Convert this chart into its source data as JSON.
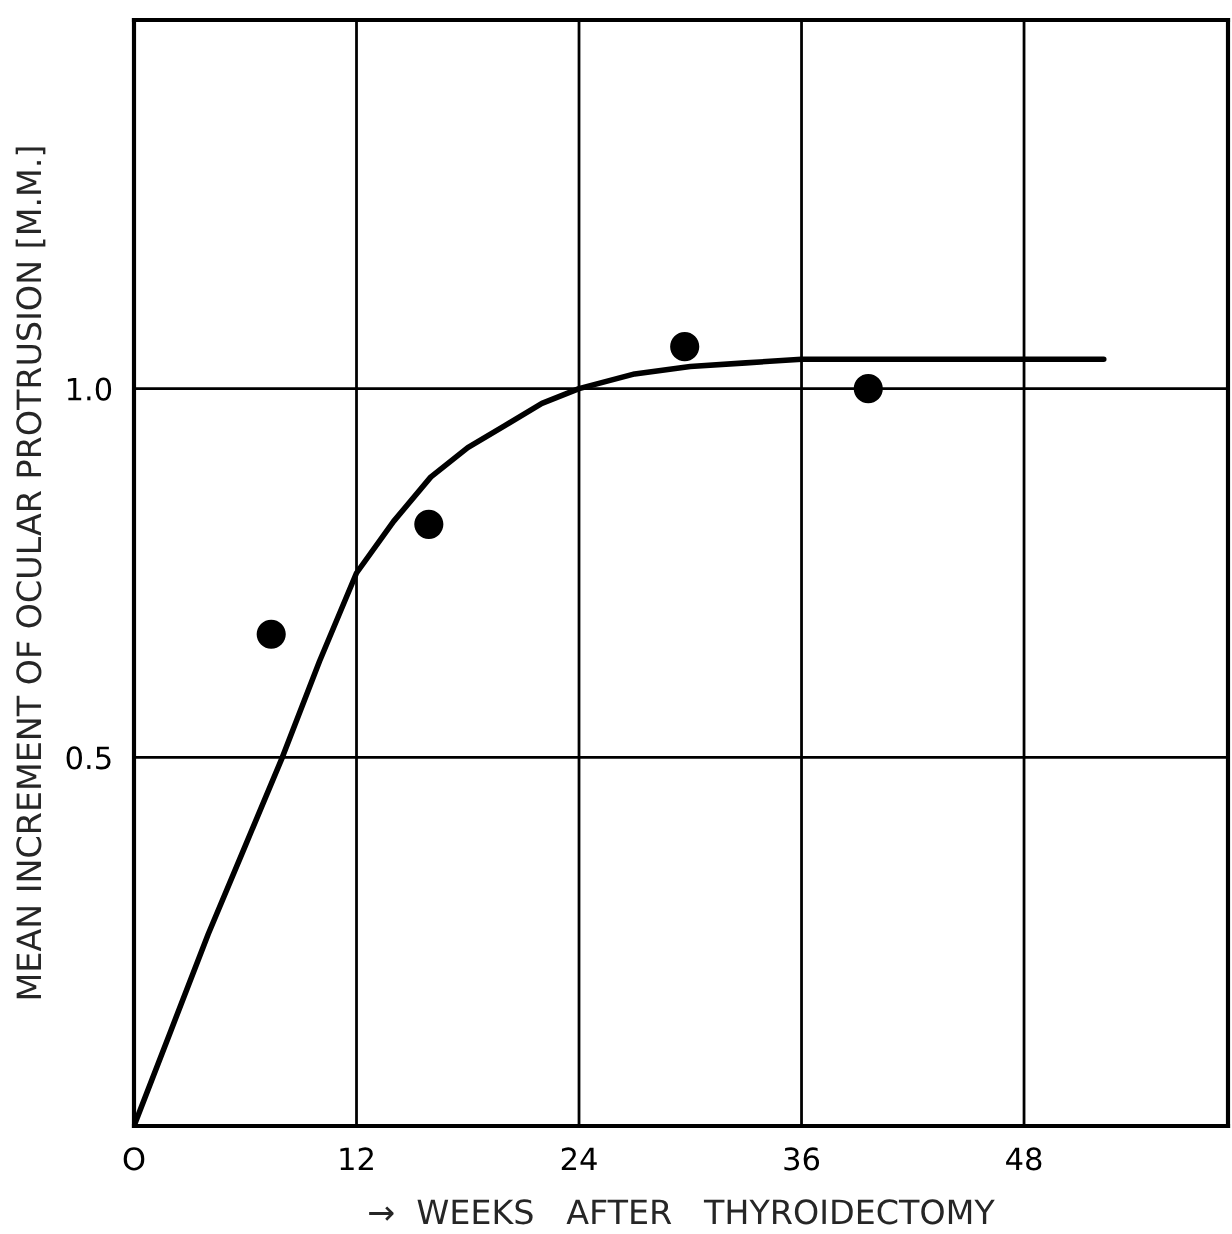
{
  "chart_data": {
    "type": "scatter",
    "xlabel": "→  WEEKS   AFTER   THYROIDECTOMY",
    "ylabel": "MEAN INCREMENT OF OCULAR PROTRUSION [M.M.]",
    "series": [
      {
        "color": "#000000",
        "x": [
          7.4,
          15.9,
          29.7,
          39.6
        ],
        "values": [
          0.667,
          0.816,
          1.057,
          1.0
        ],
        "marker": "circle"
      },
      {
        "type": "line",
        "color": "#000000",
        "x": [
          0,
          2,
          4,
          6,
          8,
          10,
          12,
          14,
          16,
          18,
          20,
          22,
          24,
          27,
          30,
          33,
          36,
          42,
          48,
          52.3
        ],
        "values": [
          0,
          0.13,
          0.26,
          0.38,
          0.5,
          0.63,
          0.75,
          0.82,
          0.88,
          0.92,
          0.95,
          0.98,
          1.0,
          1.02,
          1.03,
          1.035,
          1.04,
          1.04,
          1.04,
          1.04
        ],
        "marker": "none",
        "line_style": "solid"
      }
    ],
    "xlim": [
      0,
      59
    ],
    "ylim": [
      0,
      1.5
    ],
    "xticks": [
      {
        "value": 0,
        "label": "O"
      },
      12,
      24,
      36,
      48
    ],
    "yticks": [
      0.5,
      {
        "value": 1.0,
        "label": "1.0"
      }
    ],
    "grid": true
  }
}
